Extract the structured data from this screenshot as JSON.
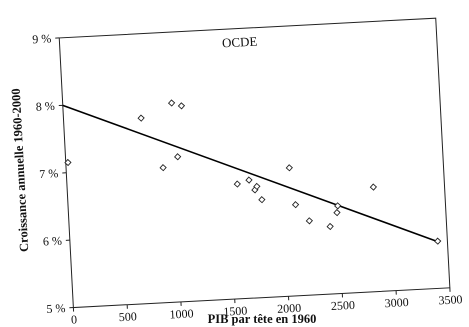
{
  "chart_data": {
    "type": "scatter",
    "title": "",
    "annotation": "OCDE",
    "xlabel": "PIB par tête en 1960",
    "ylabel": "Croissance annuelle 1960-2000",
    "xlim": [
      0,
      3500
    ],
    "ylim": [
      5,
      9
    ],
    "x_ticks": [
      0,
      500,
      1000,
      1500,
      2000,
      2500,
      3000,
      3500
    ],
    "x_tick_labels": [
      "0",
      "500",
      "1000",
      "1500",
      "2000",
      "2500",
      "3000",
      "3500"
    ],
    "y_ticks": [
      5,
      6,
      7,
      8,
      9
    ],
    "y_tick_labels": [
      "5 %",
      "6 %",
      "7 %",
      "8 %",
      "9 %"
    ],
    "grid": false,
    "legend": "none",
    "marker": "diamond",
    "trendline": {
      "x": [
        0,
        3400
      ],
      "y": [
        8.0,
        5.7
      ]
    },
    "points": [
      {
        "x": 20,
        "y": 7.15
      },
      {
        "x": 720,
        "y": 7.75
      },
      {
        "x": 900,
        "y": 7.0
      },
      {
        "x": 1010,
        "y": 7.95
      },
      {
        "x": 1040,
        "y": 7.15
      },
      {
        "x": 1100,
        "y": 7.9
      },
      {
        "x": 1580,
        "y": 6.7
      },
      {
        "x": 1690,
        "y": 6.75
      },
      {
        "x": 1740,
        "y": 6.6
      },
      {
        "x": 1760,
        "y": 6.65
      },
      {
        "x": 1800,
        "y": 6.45
      },
      {
        "x": 2070,
        "y": 6.9
      },
      {
        "x": 2110,
        "y": 6.35
      },
      {
        "x": 2230,
        "y": 6.1
      },
      {
        "x": 2420,
        "y": 6.0
      },
      {
        "x": 2490,
        "y": 6.2
      },
      {
        "x": 2500,
        "y": 6.3
      },
      {
        "x": 2840,
        "y": 6.55
      },
      {
        "x": 3410,
        "y": 5.7
      }
    ]
  }
}
